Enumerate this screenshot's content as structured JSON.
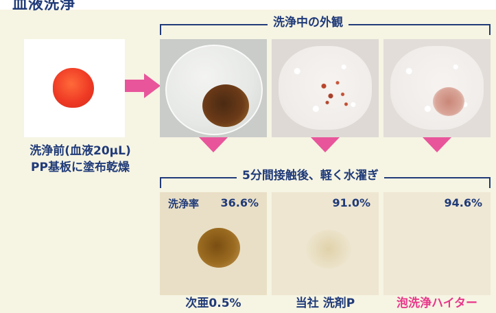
{
  "header": {
    "title": "血液洗浄"
  },
  "before": {
    "line1": "洗浄前(血液20μL)",
    "line2": "PP基板に塗布乾燥"
  },
  "during_label": "洗浄中の外観",
  "after_label": "5分間接触後、軽く水濯ぎ",
  "results": [
    {
      "rate_label": "洗浄率",
      "rate": "36.6%",
      "name": "次亜0.5%"
    },
    {
      "rate": "91.0%",
      "name": "当社 洗剤P"
    },
    {
      "rate": "94.6%",
      "name": "泡洗浄ハイター"
    }
  ],
  "colors": {
    "navy": "#1f3a78",
    "pink": "#e8559a",
    "background": "#f6f4e3"
  }
}
